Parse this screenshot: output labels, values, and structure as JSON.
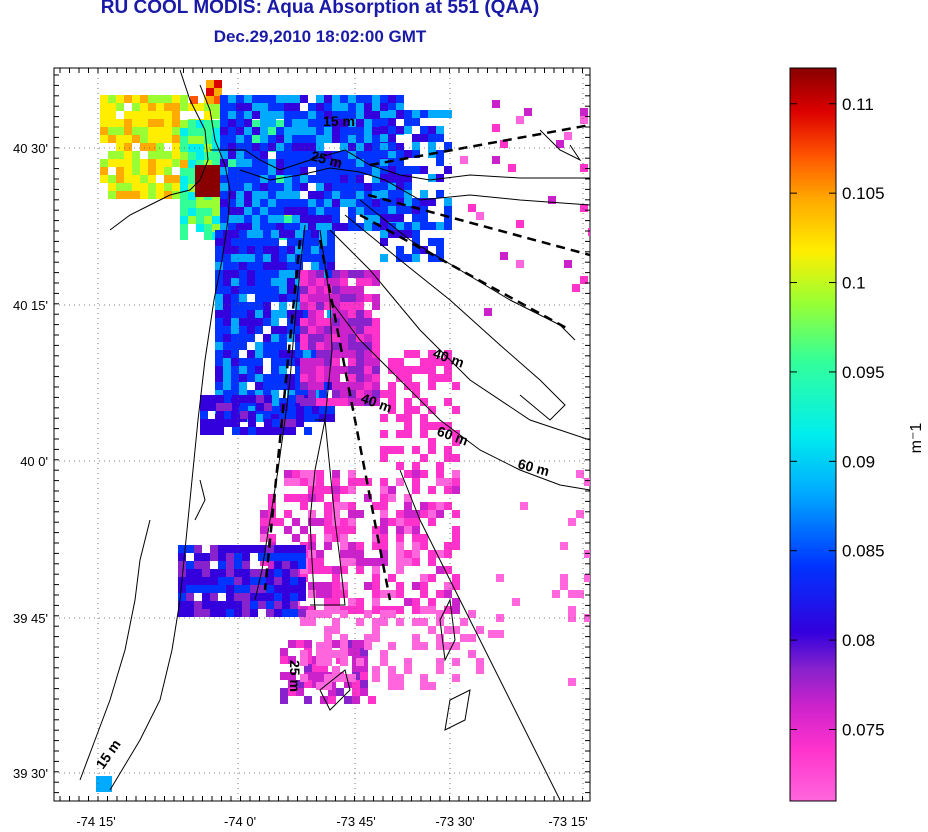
{
  "title": "RU COOL MODIS: Aqua Absorption at 551 (QAA)",
  "subtitle": "Dec.29,2010 18:02:00 GMT",
  "map": {
    "lat_ticks": [
      "40 30'",
      "40 15'",
      "40 0'",
      "39 45'",
      "39 30'"
    ],
    "lon_ticks": [
      "-74 15'",
      "-74 0'",
      "-73 45'",
      "-73 30'",
      "-73 15'"
    ],
    "contour_labels": [
      "15 m",
      "25 m",
      "40 m",
      "40 m",
      "60 m",
      "60 m",
      "15 m",
      "25 m"
    ],
    "grid": true
  },
  "colorbar": {
    "unit_label": "m⁻1",
    "tick_labels": [
      "0.11",
      "0.105",
      "0.1",
      "0.095",
      "0.09",
      "0.085",
      "0.08",
      "0.075"
    ],
    "range": [
      0.071,
      0.112
    ],
    "colors": [
      "#ff66dd",
      "#ff33cc",
      "#cc22cc",
      "#8822cc",
      "#3300dd",
      "#0033ff",
      "#00aaff",
      "#00eeee",
      "#33ff99",
      "#99ff33",
      "#ffee00",
      "#ffaa00",
      "#ff5500",
      "#dd0000",
      "#880000"
    ]
  }
}
